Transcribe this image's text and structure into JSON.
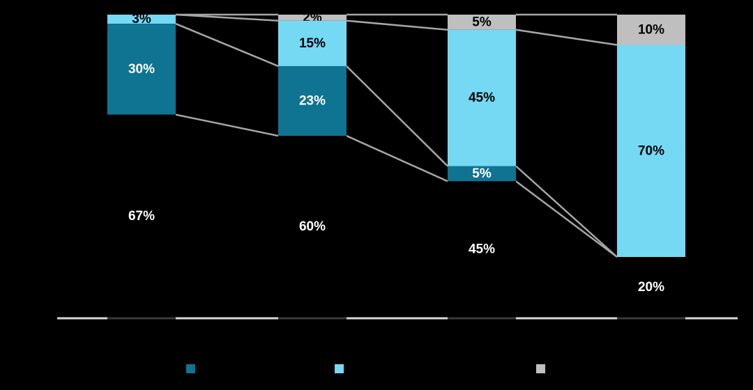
{
  "page": {
    "background_color": "#000000"
  },
  "chart_data": {
    "type": "bar",
    "subtype": "stacked-100-percent-column",
    "title": "",
    "xlabel": "",
    "ylabel": "",
    "ylim": [
      0,
      100
    ],
    "grid": false,
    "legend_position": "bottom",
    "categories": [
      "",
      "",
      "",
      ""
    ],
    "series": [
      {
        "name": "background-black-segment",
        "legend_label": "",
        "color": "#000000",
        "label_color": "#FFFFFF",
        "in_legend": false,
        "values": [
          67,
          60,
          45,
          20
        ]
      },
      {
        "name": "dark-teal-segment",
        "legend_label": "",
        "color": "#0F7392",
        "label_color": "#FFFFFF",
        "in_legend": true,
        "values": [
          30,
          23,
          5,
          0
        ]
      },
      {
        "name": "light-blue-segment",
        "legend_label": "",
        "color": "#76D9F4",
        "label_color": "#000000",
        "in_legend": true,
        "values": [
          3,
          15,
          45,
          70
        ]
      },
      {
        "name": "gray-segment",
        "legend_label": "",
        "color": "#BFBFBF",
        "label_color": "#000000",
        "in_legend": true,
        "values": [
          0,
          2,
          5,
          10
        ]
      }
    ],
    "data_labels": {
      "suffix": "%",
      "shown_when": "value > 0"
    },
    "connectors": {
      "color": "#A6A6A6"
    },
    "axis": {
      "baseline_color": "#D9D9D9",
      "baseline_under_bar_color": "#3A3A3A"
    },
    "legend": {
      "items": [
        {
          "name": "dark-teal",
          "color": "#0F7392",
          "label": ""
        },
        {
          "name": "light-blue",
          "color": "#76D9F4",
          "label": ""
        },
        {
          "name": "gray",
          "color": "#BFBFBF",
          "label": ""
        }
      ]
    }
  }
}
